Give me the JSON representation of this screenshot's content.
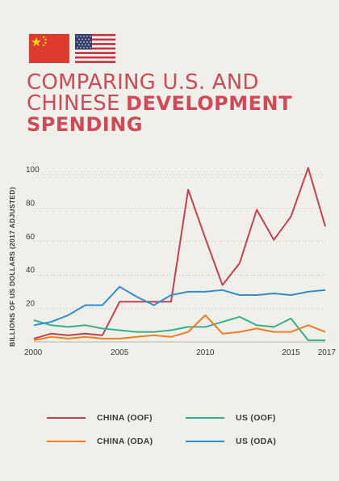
{
  "header": {
    "title_line1": "COMPARING U.S. AND",
    "title_line2_thin": "CHINESE",
    "title_line2_bold": "DEVELOPMENT",
    "title_line3_bold": "SPENDING",
    "flags": [
      "china-flag",
      "us-flag"
    ]
  },
  "colors": {
    "background": "#f1efe9",
    "title": "#cf4a57",
    "china_oof": "#c3424d",
    "china_oda": "#ee7d24",
    "us_oof": "#36b08a",
    "us_oda": "#2f8fd0",
    "grid": "#d9d6cf"
  },
  "chart_data": {
    "type": "line",
    "ylabel": "BILLIONS OF US DOLLARS (2017 ADJUSTED)",
    "xlabel": "",
    "xlim": [
      2000,
      2017
    ],
    "ylim": [
      0,
      100
    ],
    "x_ticks": [
      2000,
      2005,
      2010,
      2015,
      2017
    ],
    "y_ticks": [
      20,
      40,
      60,
      80,
      100
    ],
    "x": [
      2000,
      2001,
      2002,
      2003,
      2004,
      2005,
      2006,
      2007,
      2008,
      2009,
      2010,
      2011,
      2012,
      2013,
      2014,
      2015,
      2016,
      2017
    ],
    "series": [
      {
        "name": "CHINA (OOF)",
        "color": "#c3424d",
        "values": [
          2,
          5,
          4,
          5,
          4,
          24,
          24,
          24,
          24,
          91,
          62,
          34,
          47,
          79,
          61,
          75,
          104,
          69
        ]
      },
      {
        "name": "US (OOF)",
        "color": "#36b08a",
        "values": [
          13,
          10,
          9,
          10,
          8,
          7,
          6,
          6,
          7,
          9,
          9,
          12,
          15,
          10,
          9,
          14,
          1,
          1
        ]
      },
      {
        "name": "CHINA (ODA)",
        "color": "#ee7d24",
        "values": [
          1,
          3,
          2,
          3,
          2,
          2,
          3,
          4,
          3,
          6,
          16,
          5,
          6,
          8,
          6,
          6,
          10,
          6
        ]
      },
      {
        "name": "US (ODA)",
        "color": "#2f8fd0",
        "values": [
          10,
          12,
          16,
          22,
          22,
          33,
          27,
          22,
          28,
          30,
          30,
          31,
          28,
          28,
          29,
          28,
          30,
          31
        ]
      }
    ],
    "grid": true,
    "legend_position": "bottom"
  },
  "legend": {
    "items": [
      {
        "label": "CHINA (OOF)",
        "color": "#c3424d"
      },
      {
        "label": "US (OOF)",
        "color": "#36b08a"
      },
      {
        "label": "CHINA (ODA)",
        "color": "#ee7d24"
      },
      {
        "label": "US (ODA)",
        "color": "#2f8fd0"
      }
    ]
  }
}
